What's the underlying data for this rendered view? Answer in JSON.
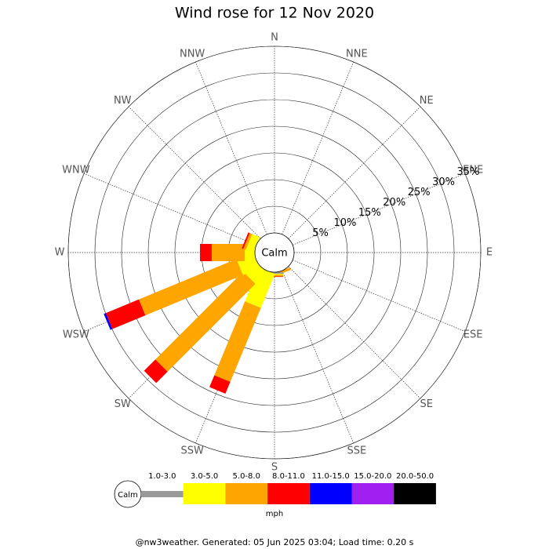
{
  "chart_data": {
    "type": "windrose",
    "title": "Wind rose for 12 Nov 2020",
    "categories": [
      "N",
      "NNE",
      "NE",
      "ENE",
      "E",
      "ESE",
      "SE",
      "SSE",
      "S",
      "SSW",
      "SW",
      "WSW",
      "W",
      "WNW",
      "NW",
      "NNW"
    ],
    "series": [
      {
        "name": "1.0-3.0",
        "color": "#999999",
        "values": [
          0,
          0,
          0,
          0,
          0,
          0,
          0,
          0,
          0.3,
          0,
          0,
          0,
          0,
          0,
          0,
          0
        ]
      },
      {
        "name": "3.0-5.0",
        "color": "#ffff00",
        "values": [
          0,
          0,
          0,
          0,
          0,
          0,
          0,
          0,
          0.2,
          6.9,
          3,
          3.4,
          1.9,
          1.5,
          0,
          0
        ]
      },
      {
        "name": "5.0-8.0",
        "color": "#ffa500",
        "values": [
          0,
          0,
          0,
          0,
          0,
          0,
          0,
          0.5,
          0.3,
          15,
          23.3,
          19.8,
          6.2,
          0.5,
          0,
          0
        ]
      },
      {
        "name": "8.0-11.0",
        "color": "#ff0000",
        "values": [
          0,
          0,
          0,
          0,
          0,
          0,
          0,
          0,
          0.1,
          2.4,
          3,
          6.7,
          2.2,
          0.3,
          0,
          0
        ]
      },
      {
        "name": "11.0-15.0",
        "color": "#0000ff",
        "values": [
          0,
          0,
          0,
          0,
          0,
          0,
          0,
          0,
          0,
          0,
          0,
          0.4,
          0,
          0,
          0,
          0
        ]
      },
      {
        "name": "15.0-20.0",
        "color": "#a020f0",
        "values": [
          0,
          0,
          0,
          0,
          0,
          0,
          0,
          0,
          0,
          0,
          0,
          0,
          0,
          0,
          0,
          0
        ]
      },
      {
        "name": "20.0-50.0",
        "color": "#000000",
        "values": [
          0,
          0,
          0,
          0,
          0,
          0,
          0,
          0,
          0,
          0,
          0,
          0,
          0,
          0,
          0,
          0
        ]
      }
    ],
    "rlim": [
      0,
      35
    ],
    "rticks": [
      {
        "value": 5,
        "label": "5%"
      },
      {
        "value": 10,
        "label": "10%"
      },
      {
        "value": 15,
        "label": "15%"
      },
      {
        "value": 20,
        "label": "20%"
      },
      {
        "value": 25,
        "label": "25%"
      },
      {
        "value": 30,
        "label": "30%"
      },
      {
        "value": 35,
        "label": "35%"
      }
    ],
    "calm_label": "Calm",
    "unit_label": "mph",
    "footer": "@nw3weather. Generated: 05 Jun 2025 03:04; Load time: 0.20 s"
  }
}
